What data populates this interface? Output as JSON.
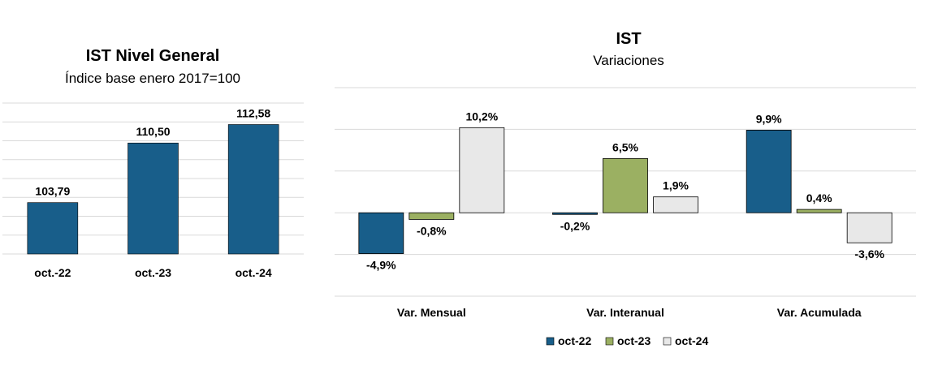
{
  "colors": {
    "oct22": "#185E8A",
    "oct23": "#9BB062",
    "oct24": "#E8E8E8",
    "grid": "#D9D9D9"
  },
  "chart_data": [
    {
      "type": "bar",
      "title": "IST Nivel General",
      "subtitle": "Índice base enero 2017=100",
      "categories": [
        "oct.-22",
        "oct.-23",
        "oct.-24"
      ],
      "values": [
        103.79,
        110.5,
        112.58
      ],
      "value_labels": [
        "103,79",
        "110,50",
        "112,58"
      ],
      "ylim": [
        98,
        115
      ],
      "grid": true,
      "legend": "none"
    },
    {
      "type": "bar",
      "title": "IST",
      "subtitle": "Variaciones",
      "categories": [
        "Var. Mensual",
        "Var. Interanual",
        "Var. Acumulada"
      ],
      "series": [
        {
          "name": "oct-22",
          "values": [
            -4.9,
            -0.2,
            9.9
          ],
          "labels": [
            "-4,9%",
            "-0,2%",
            "9,9%"
          ]
        },
        {
          "name": "oct-23",
          "values": [
            -0.8,
            6.5,
            0.4
          ],
          "labels": [
            "-0,8%",
            "6,5%",
            "0,4%"
          ]
        },
        {
          "name": "oct-24",
          "values": [
            10.2,
            1.9,
            -3.6
          ],
          "labels": [
            "10,2%",
            "1,9%",
            "-3,6%"
          ]
        }
      ],
      "ylim": [
        -10,
        15
      ],
      "grid": true,
      "legend": "bottom"
    }
  ]
}
